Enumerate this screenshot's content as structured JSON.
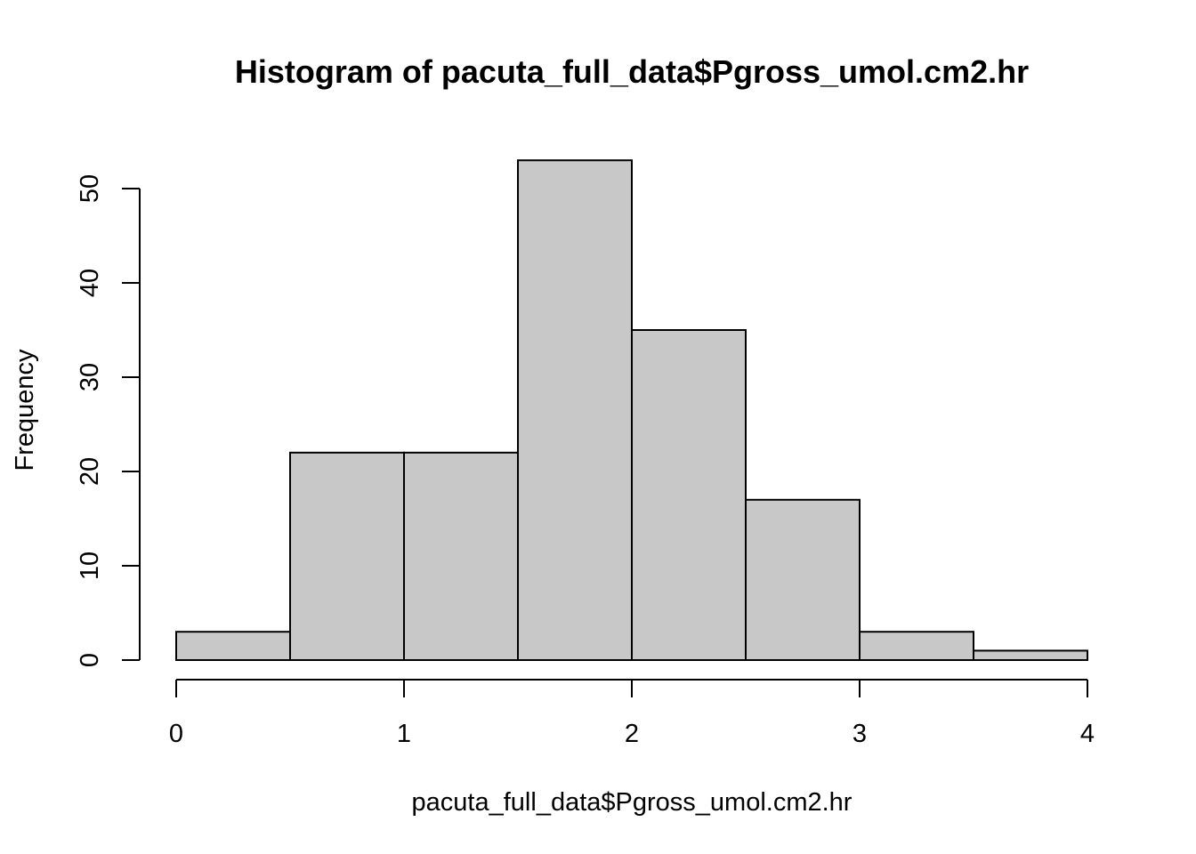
{
  "chart_data": {
    "type": "bar",
    "histogram": true,
    "title": "Histogram of pacuta_full_data$Pgross_umol.cm2.hr",
    "xlabel": "pacuta_full_data$Pgross_umol.cm2.hr",
    "ylabel": "Frequency",
    "bins": [
      {
        "start": 0.0,
        "end": 0.5,
        "count": 3
      },
      {
        "start": 0.5,
        "end": 1.0,
        "count": 22
      },
      {
        "start": 1.0,
        "end": 1.5,
        "count": 22
      },
      {
        "start": 1.5,
        "end": 2.0,
        "count": 53
      },
      {
        "start": 2.0,
        "end": 2.5,
        "count": 35
      },
      {
        "start": 2.5,
        "end": 3.0,
        "count": 17
      },
      {
        "start": 3.0,
        "end": 3.5,
        "count": 3
      },
      {
        "start": 3.5,
        "end": 4.0,
        "count": 1
      }
    ],
    "xlim": [
      0,
      4
    ],
    "ylim": [
      0,
      53
    ],
    "x_ticks": [
      "0",
      "1",
      "2",
      "3",
      "4"
    ],
    "y_ticks": [
      "0",
      "10",
      "20",
      "30",
      "40",
      "50"
    ],
    "bar_color": "#c8c8c8",
    "grid": false
  }
}
